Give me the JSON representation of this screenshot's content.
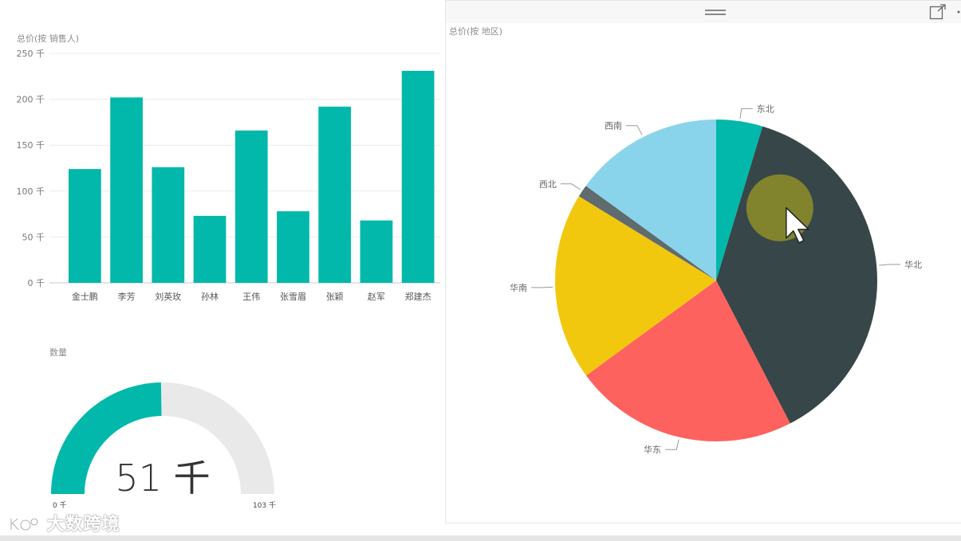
{
  "chart_data": [
    {
      "type": "bar",
      "title": "总价(按 销售人)",
      "categories": [
        "金士鹏",
        "李芳",
        "刘英玫",
        "孙林",
        "王伟",
        "张雪眉",
        "张颖",
        "赵军",
        "郑建杰"
      ],
      "values": [
        124,
        202,
        126,
        73,
        166,
        78,
        192,
        68,
        231
      ],
      "unit": "千",
      "yticks": [
        "0 千",
        "50 千",
        "100 千",
        "150 千",
        "200 千",
        "250 千"
      ],
      "ylim": [
        0,
        250
      ],
      "color": "#01b8aa",
      "grid": true
    },
    {
      "type": "pie",
      "title": "总价(按 地区)",
      "labels": [
        "东北",
        "华北",
        "华东",
        "华南",
        "西北",
        "西南"
      ],
      "values": [
        4.5,
        36.5,
        21.8,
        18.2,
        1.2,
        14.5
      ],
      "colors": [
        "#01b8aa",
        "#374649",
        "#fd625e",
        "#f2c80f",
        "#5f6b6d",
        "#8ad4eb"
      ],
      "highlighted": "华北"
    },
    {
      "type": "gauge",
      "title": "数量",
      "value": 51,
      "min": 0,
      "max": 103,
      "value_label": "51 千",
      "min_label": "0 千",
      "max_label": "103 千",
      "fill_color": "#01b8aa",
      "track_color": "#e9e9e9"
    }
  ],
  "watermark": "大数跨境"
}
